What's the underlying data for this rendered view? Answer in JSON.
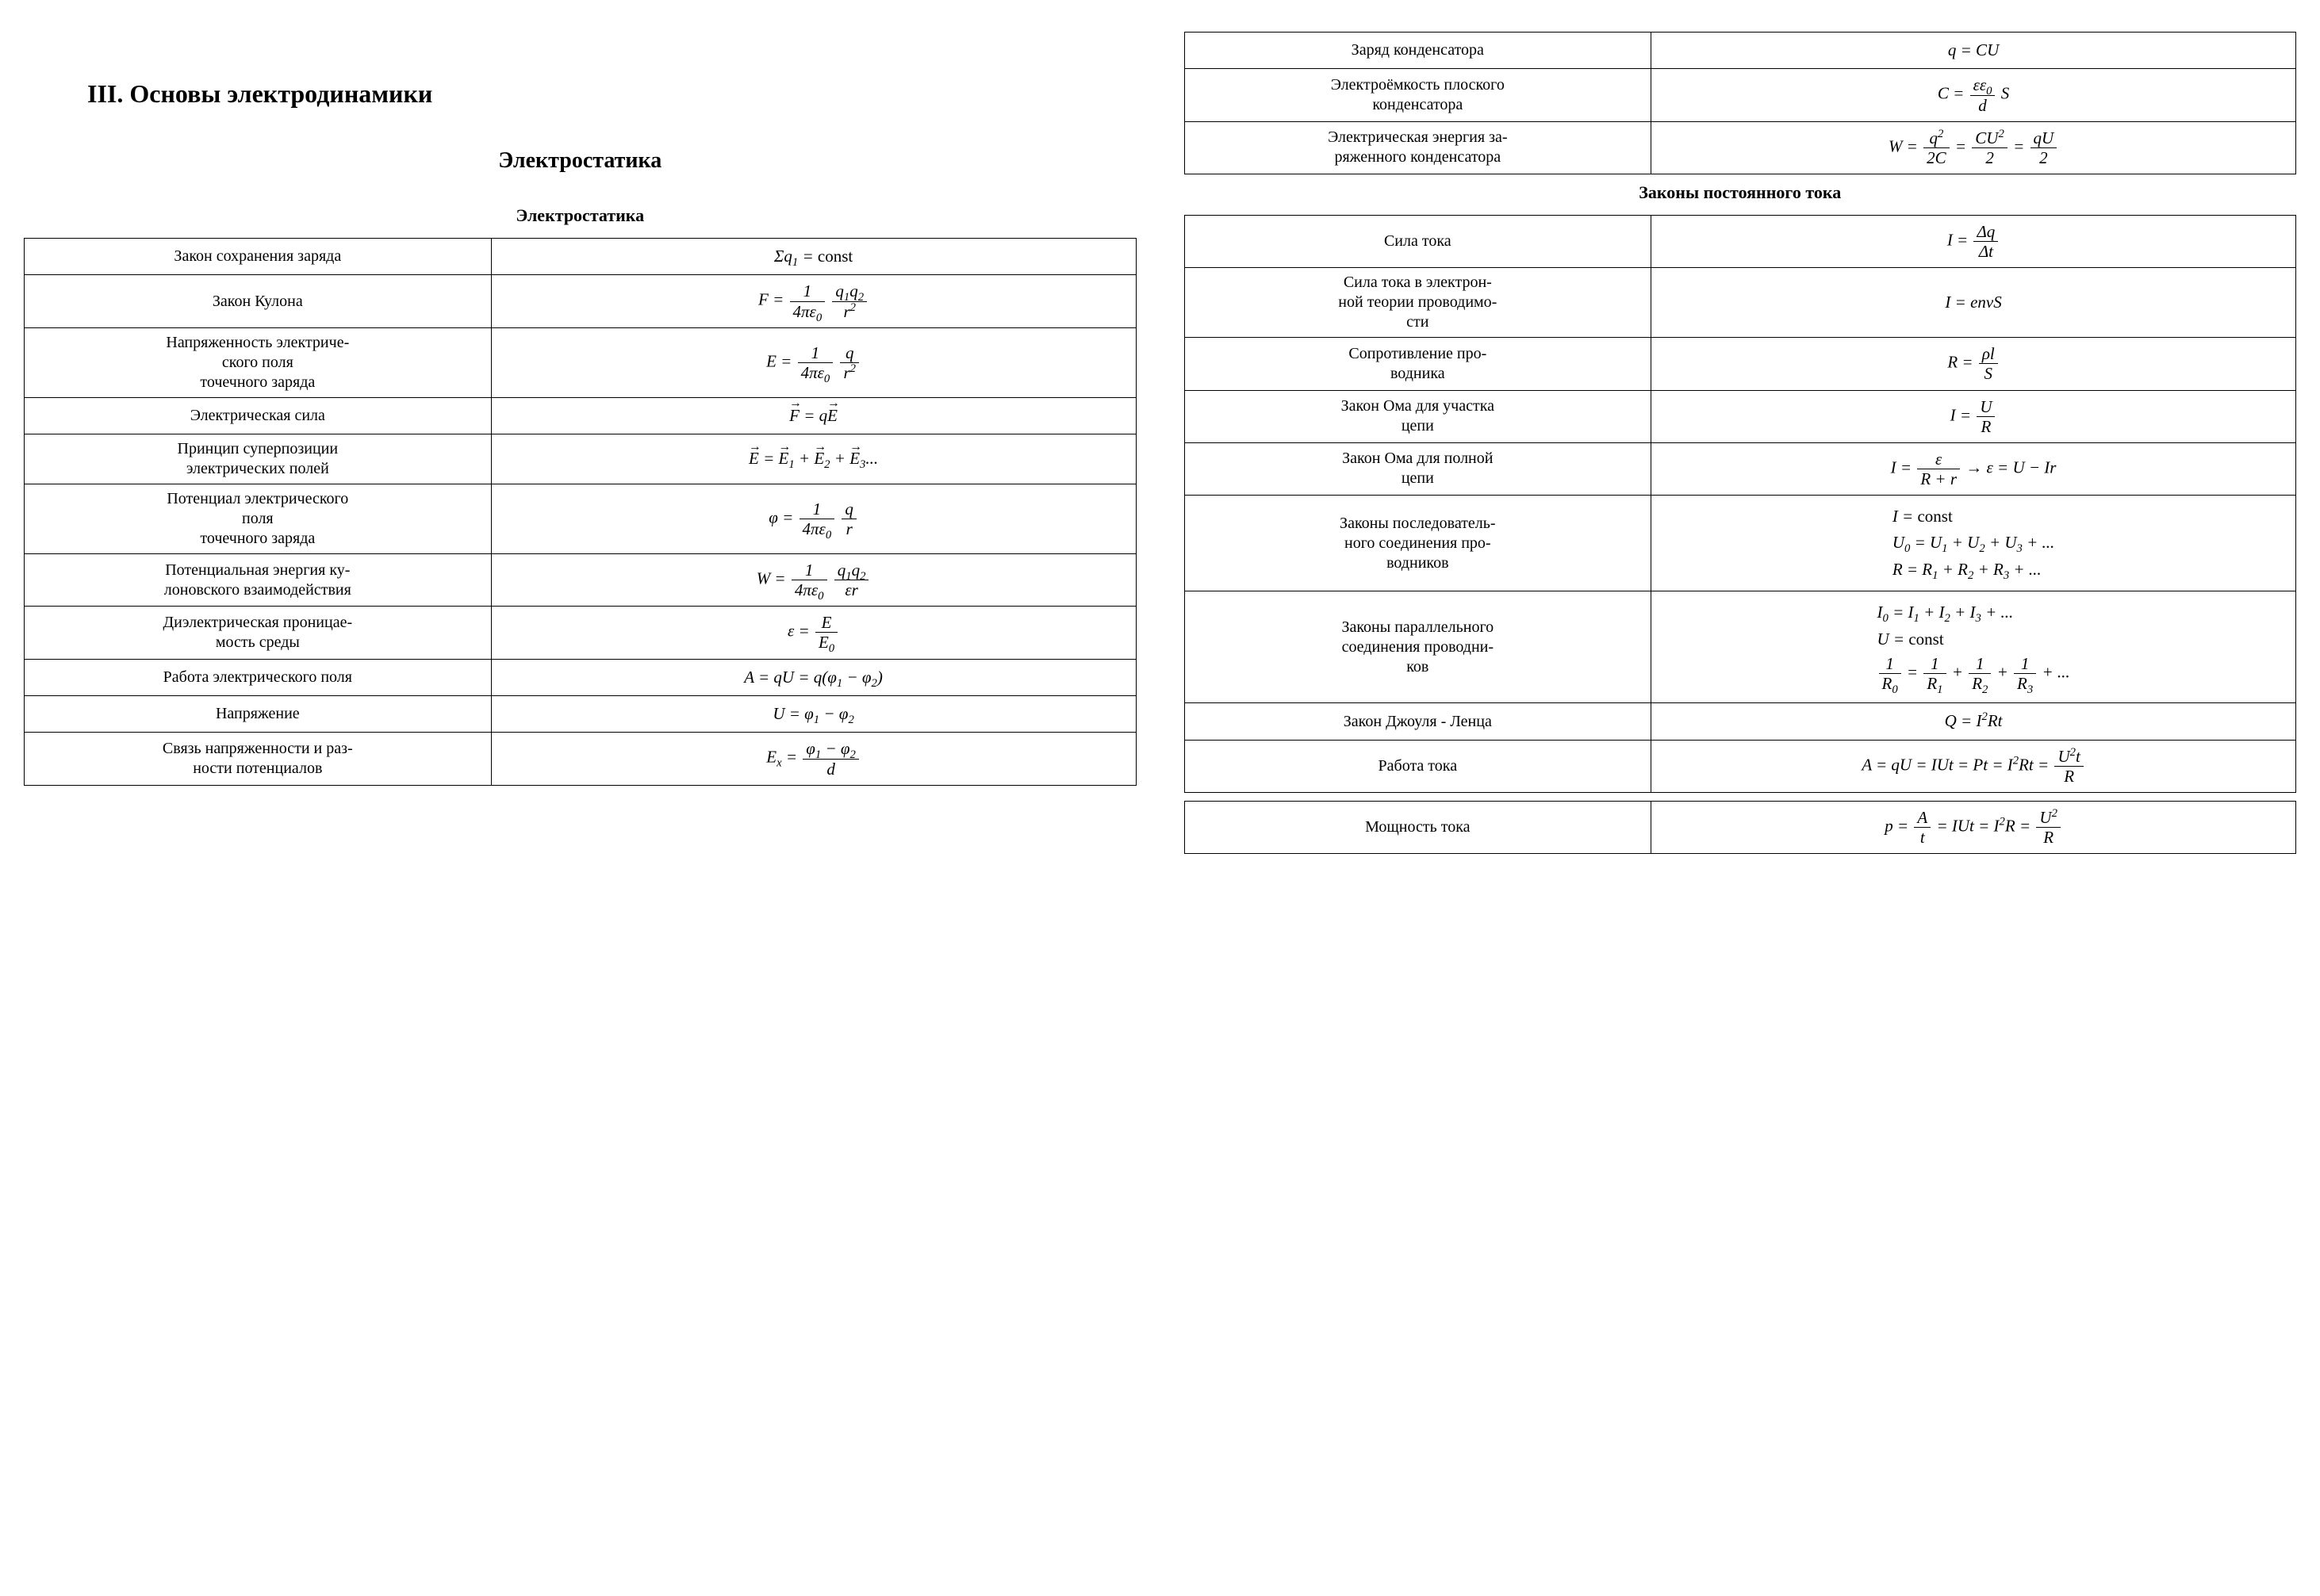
{
  "main_title": "III. Основы электродинамики",
  "section_title": "Электростатика",
  "left": {
    "table1_title": "Электростатика",
    "rows": [
      {
        "label": "Закон сохранения заряда",
        "formula_key": "f_conservation"
      },
      {
        "label": "Закон Кулона",
        "formula_key": "f_coulomb"
      },
      {
        "label": "Напряженность электрического поля точечного заряда",
        "formula_key": "f_field"
      },
      {
        "label": "Электрическая сила",
        "formula_key": "f_force"
      },
      {
        "label": "Принцип суперпозиции электрических полей",
        "formula_key": "f_superposition"
      },
      {
        "label": "Потенциал электрического поля точечного заряда",
        "formula_key": "f_potential"
      },
      {
        "label": "Потенциальная энергия кулоновского взаимодействия",
        "formula_key": "f_energy"
      },
      {
        "label": "Диэлектрическая проницаемость среды",
        "formula_key": "f_permittivity"
      },
      {
        "label": "Работа электрического поля",
        "formula_key": "f_work"
      },
      {
        "label": "Напряжение",
        "formula_key": "f_voltage"
      },
      {
        "label": "Связь напряженности и разности потенциалов",
        "formula_key": "f_ex"
      }
    ]
  },
  "right": {
    "table_cap": {
      "rows": [
        {
          "label": "Заряд конденсатора",
          "formula_key": "f_cap_charge"
        },
        {
          "label": "Электроёмкость плоского конденсатора",
          "formula_key": "f_cap_capacity"
        },
        {
          "label": "Электрическая энергия заряженного конденсатора",
          "formula_key": "f_cap_energy"
        }
      ]
    },
    "section2_title": "Законы постоянного тока",
    "table_current": {
      "rows": [
        {
          "label": "Сила тока",
          "formula_key": "f_current"
        },
        {
          "label": "Сила тока в электронной теории проводимости",
          "formula_key": "f_current_e"
        },
        {
          "label": "Сопротивление проводника",
          "formula_key": "f_resistance"
        },
        {
          "label": "Закон Ома для участка цепи",
          "formula_key": "f_ohm"
        },
        {
          "label": "Закон Ома для полной цепи",
          "formula_key": "f_ohm_full"
        },
        {
          "label": "Законы последовательного соединения проводников",
          "formula_key": "f_series"
        },
        {
          "label": "Законы параллельного соединения проводников",
          "formula_key": "f_parallel"
        },
        {
          "label": "Закон Джоуля - Ленца",
          "formula_key": "f_joule"
        },
        {
          "label": "Работа тока",
          "formula_key": "f_work_current"
        }
      ]
    },
    "table_power": {
      "rows": [
        {
          "label": "Мощность тока",
          "formula_key": "f_power"
        }
      ]
    }
  },
  "formulas": {
    "f_conservation": "Σq₁ = const",
    "f_force": "F = qE (vector)",
    "f_superposition": "E = E₁ + E₂ + E₃...",
    "f_work": "A = qU = q(φ₁ − φ₂)",
    "f_voltage": "U = φ₁ − φ₂",
    "f_cap_charge": "q = CU",
    "f_current_e": "I = envS",
    "f_joule": "Q = I²Rt"
  },
  "styling": {
    "font_family": "Times New Roman",
    "text_color": "#000000",
    "background_color": "#ffffff",
    "border_color": "#000000",
    "border_width": 1.5,
    "title_fontsize": 32,
    "section_fontsize": 28,
    "table_title_fontsize": 22,
    "body_fontsize": 20,
    "formula_fontsize": 21,
    "label_column_width_pct": 42,
    "formula_column_width_pct": 58
  }
}
